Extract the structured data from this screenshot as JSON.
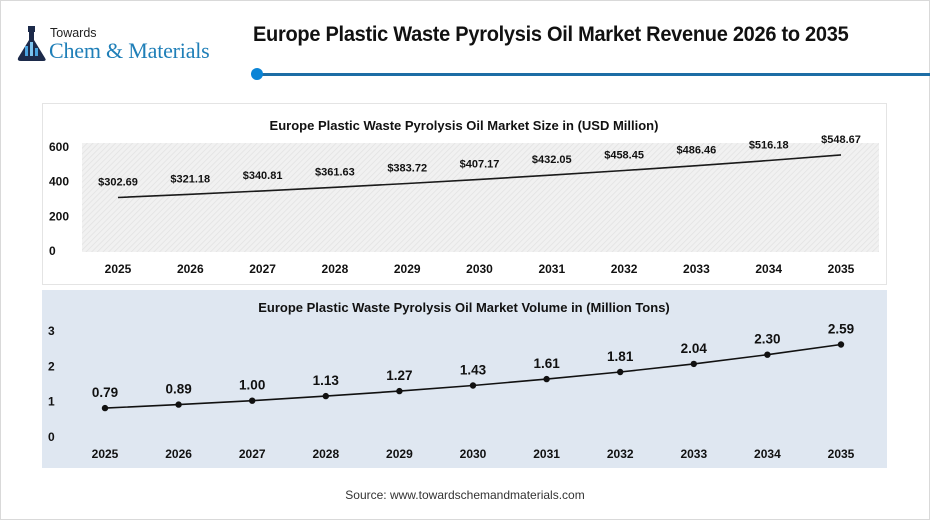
{
  "header": {
    "logo": {
      "line1": "Towards",
      "line2": "Chem & Materials",
      "icon": "flask-icon"
    },
    "title": "Europe Plastic Waste Pyrolysis Oil Market Revenue 2026 to 2035",
    "accent_color": "#1d6da5",
    "dot_color": "#0a84d6"
  },
  "footer": {
    "source": "Source: www.towardschemandmaterials.com"
  },
  "chart_data": [
    {
      "type": "line",
      "title": "Europe Plastic Waste Pyrolysis Oil Market Size in (USD Million)",
      "xlabel": "",
      "ylabel": "",
      "categories": [
        "2025",
        "2026",
        "2027",
        "2028",
        "2029",
        "2030",
        "2031",
        "2032",
        "2033",
        "2034",
        "2035"
      ],
      "values": [
        302.69,
        321.18,
        340.81,
        361.63,
        383.72,
        407.17,
        432.05,
        458.45,
        486.46,
        516.18,
        548.67
      ],
      "data_labels": [
        "$302.69",
        "$321.18",
        "$340.81",
        "$361.63",
        "$383.72",
        "$407.17",
        "$432.05",
        "$458.45",
        "$486.46",
        "$516.18",
        "$548.67"
      ],
      "yticks": [
        0,
        200,
        400,
        600
      ],
      "ylim": [
        0,
        600
      ],
      "grid": false,
      "markers": false,
      "background": "hatched light gray",
      "line_color": "#1a1a1a"
    },
    {
      "type": "line",
      "title": "Europe Plastic Waste Pyrolysis Oil Market Volume in (Million Tons)",
      "xlabel": "",
      "ylabel": "",
      "categories": [
        "2025",
        "2026",
        "2027",
        "2028",
        "2029",
        "2030",
        "2031",
        "2032",
        "2033",
        "2034",
        "2035"
      ],
      "values": [
        0.79,
        0.89,
        1.0,
        1.13,
        1.27,
        1.43,
        1.61,
        1.81,
        2.04,
        2.3,
        2.59
      ],
      "data_labels": [
        "0.79",
        "0.89",
        "1.00",
        "1.13",
        "1.27",
        "1.43",
        "1.61",
        "1.81",
        "2.04",
        "2.30",
        "2.59"
      ],
      "yticks": [
        0,
        1,
        2,
        3
      ],
      "ylim": [
        0,
        3
      ],
      "grid": false,
      "markers": true,
      "background": "#dfe7f1",
      "line_color": "#111111"
    }
  ]
}
